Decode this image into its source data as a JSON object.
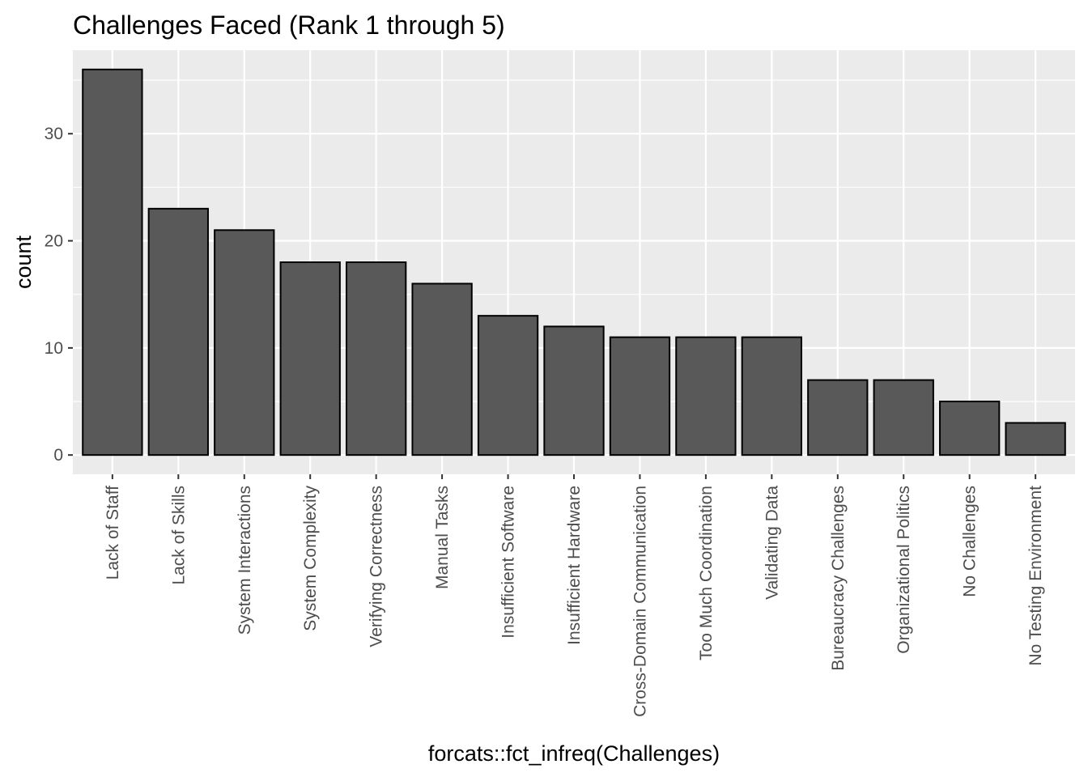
{
  "chart_data": {
    "type": "bar",
    "title": "Challenges Faced (Rank 1 through 5)",
    "xlabel": "forcats::fct_infreq(Challenges)",
    "ylabel": "count",
    "categories": [
      "Lack of Staff",
      "Lack of Skills",
      "System Interactions",
      "System Complexity",
      "Verifying Correctness",
      "Manual Tasks",
      "Insufficient Software",
      "Insufficient Hardware",
      "Cross-Domain Communication",
      "Too Much Coordination",
      "Validating Data",
      "Bureaucracy Challenges",
      "Organizational Politics",
      "No Challenges",
      "No Testing Environment"
    ],
    "values": [
      36,
      23,
      21,
      18,
      18,
      16,
      13,
      12,
      11,
      11,
      11,
      7,
      7,
      5,
      3
    ],
    "yticks": [
      0,
      10,
      20,
      30
    ],
    "ylim": [
      -1.8,
      37.8
    ],
    "grid": true,
    "legend": "none",
    "colors": {
      "bar_fill": "#595959",
      "bar_stroke": "#000000",
      "panel_bg": "#ebebeb",
      "grid": "#ffffff"
    }
  }
}
